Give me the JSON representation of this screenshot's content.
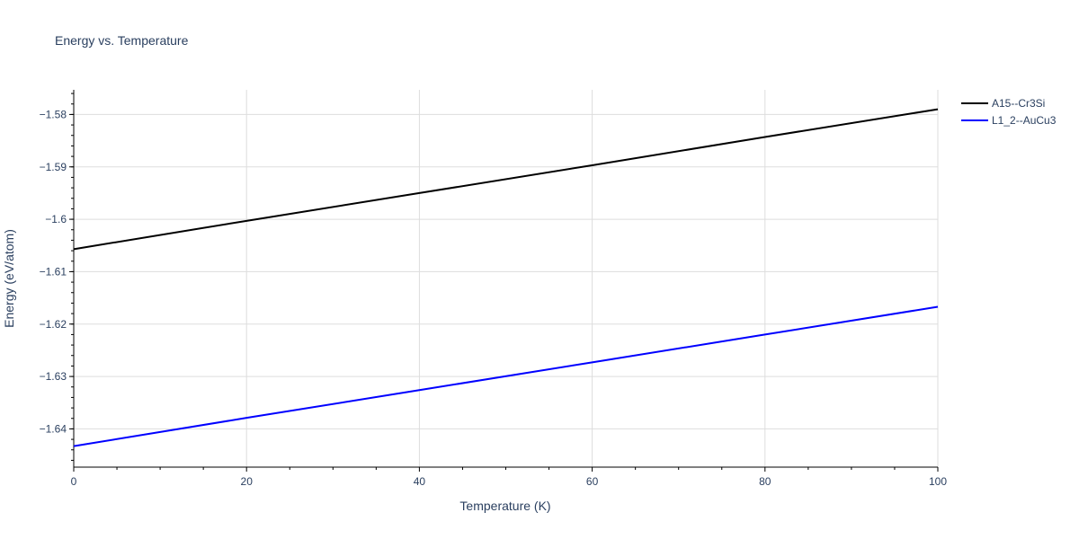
{
  "chart_data": {
    "type": "line",
    "title": "Energy vs. Temperature",
    "xlabel": "Temperature (K)",
    "ylabel": "Energy (eV/atom)",
    "xlim": [
      0,
      100
    ],
    "ylim": [
      -1.6473,
      -1.5753
    ],
    "x_ticks": [
      0,
      20,
      40,
      60,
      80,
      100
    ],
    "x_tick_labels": [
      "0",
      "20",
      "40",
      "60",
      "80",
      "100"
    ],
    "y_ticks": [
      -1.64,
      -1.63,
      -1.62,
      -1.61,
      -1.6,
      -1.59,
      -1.58
    ],
    "y_tick_labels": [
      "−1.64",
      "−1.63",
      "−1.62",
      "−1.61",
      "−1.6",
      "−1.59",
      "−1.58"
    ],
    "grid": true,
    "legend_position": "top-right",
    "series": [
      {
        "name": "A15--Cr3Si",
        "color": "#000000",
        "x": [
          0,
          20,
          40,
          60,
          80,
          100
        ],
        "y": [
          -1.6057,
          -1.6003,
          -1.595,
          -1.5897,
          -1.5843,
          -1.579
        ]
      },
      {
        "name": "L1_2--AuCu3",
        "color": "#0000ff",
        "x": [
          0,
          20,
          40,
          60,
          80,
          100
        ],
        "y": [
          -1.6433,
          -1.6379,
          -1.6326,
          -1.6273,
          -1.622,
          -1.6167
        ]
      }
    ]
  }
}
